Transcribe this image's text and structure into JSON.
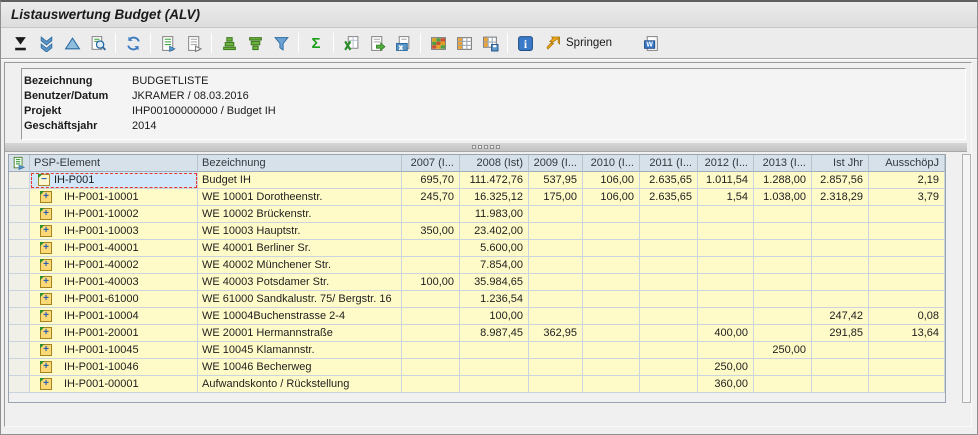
{
  "window": {
    "title": "Listauswertung Budget (ALV)"
  },
  "toolbar": {
    "springen_label": "Springen",
    "icons": [
      "expand-to-lowest-level",
      "expand-all",
      "collapse-all",
      "find",
      "refresh",
      "choose-detail",
      "detail-list",
      "sort-ascending",
      "sort-descending",
      "filter",
      "total",
      "excel-export",
      "local-file-export",
      "export",
      "choose-layout",
      "change-layout",
      "save-layout",
      "info",
      "springen-jump",
      "word-document"
    ]
  },
  "header_info": {
    "rows": [
      {
        "label": "Bezeichnung",
        "value": "BUDGETLISTE"
      },
      {
        "label": "Benutzer/Datum",
        "value": "JKRAMER / 08.03.2016"
      },
      {
        "label": "Projekt",
        "value": "IHP00100000000 / Budget IH"
      },
      {
        "label": "Geschäftsjahr",
        "value": "2014"
      }
    ]
  },
  "table": {
    "columns": [
      "PSP-Element",
      "Bezeichnung",
      "2007 (I...",
      "2008 (Ist)",
      "2009 (I...",
      "2010 (I...",
      "2011 (I...",
      "2012 (I...",
      "2013 (I...",
      "Ist Jhr",
      "AusschöpJ"
    ],
    "rows": [
      {
        "node": "expanded",
        "psp": "IH-P001",
        "bezeichnung": "Budget IH",
        "selected": true,
        "values": [
          "695,70",
          "111.472,76",
          "537,95",
          "106,00",
          "2.635,65",
          "1.011,54",
          "1.288,00",
          "2.857,56",
          "2,19"
        ]
      },
      {
        "node": "collapsed",
        "psp": "IH-P001-10001",
        "bezeichnung": "WE 10001 Dorotheenstr.",
        "values": [
          "245,70",
          "16.325,12",
          "175,00",
          "106,00",
          "2.635,65",
          "1,54",
          "1.038,00",
          "2.318,29",
          "3,79"
        ]
      },
      {
        "node": "collapsed",
        "psp": "IH-P001-10002",
        "bezeichnung": "WE 10002 Brückenstr.",
        "values": [
          "",
          "11.983,00",
          "",
          "",
          "",
          "",
          "",
          "",
          ""
        ]
      },
      {
        "node": "collapsed",
        "psp": "IH-P001-10003",
        "bezeichnung": "WE 10003 Hauptstr.",
        "values": [
          "350,00",
          "23.402,00",
          "",
          "",
          "",
          "",
          "",
          "",
          ""
        ]
      },
      {
        "node": "collapsed",
        "psp": "IH-P001-40001",
        "bezeichnung": "WE 40001 Berliner Sr.",
        "values": [
          "",
          "5.600,00",
          "",
          "",
          "",
          "",
          "",
          "",
          ""
        ]
      },
      {
        "node": "collapsed",
        "psp": "IH-P001-40002",
        "bezeichnung": "WE 40002 Münchener Str.",
        "values": [
          "",
          "7.854,00",
          "",
          "",
          "",
          "",
          "",
          "",
          ""
        ]
      },
      {
        "node": "collapsed",
        "psp": "IH-P001-40003",
        "bezeichnung": "WE 40003 Potsdamer Str.",
        "values": [
          "100,00",
          "35.984,65",
          "",
          "",
          "",
          "",
          "",
          "",
          ""
        ]
      },
      {
        "node": "collapsed",
        "psp": "IH-P001-61000",
        "bezeichnung": "WE 61000 Sandkalustr. 75/ Bergstr. 16",
        "values": [
          "",
          "1.236,54",
          "",
          "",
          "",
          "",
          "",
          "",
          ""
        ]
      },
      {
        "node": "collapsed",
        "psp": "IH-P001-10004",
        "bezeichnung": "WE 10004Buchenstrasse 2-4",
        "values": [
          "",
          "100,00",
          "",
          "",
          "",
          "",
          "",
          "247,42",
          "0,08"
        ]
      },
      {
        "node": "collapsed",
        "psp": "IH-P001-20001",
        "bezeichnung": "WE 20001 Hermannstraße",
        "values": [
          "",
          "8.987,45",
          "362,95",
          "",
          "",
          "400,00",
          "",
          "291,85",
          "13,64"
        ]
      },
      {
        "node": "collapsed",
        "psp": "IH-P001-10045",
        "bezeichnung": "WE 10045 Klamannstr.",
        "values": [
          "",
          "",
          "",
          "",
          "",
          "",
          "250,00",
          "",
          ""
        ]
      },
      {
        "node": "collapsed",
        "psp": "IH-P001-10046",
        "bezeichnung": "WE 10046 Becherweg",
        "values": [
          "",
          "",
          "",
          "",
          "",
          "250,00",
          "",
          "",
          ""
        ]
      },
      {
        "node": "collapsed",
        "psp": "IH-P001-00001",
        "bezeichnung": "Aufwandskonto / Rückstellung",
        "values": [
          "",
          "",
          "",
          "",
          "",
          "360,00",
          "",
          "",
          ""
        ]
      }
    ]
  },
  "colors": {
    "cell_yellow": "#fffbc8",
    "header_blue_gray": "#d7e1ea",
    "selection_blue": "#d2e7fa",
    "selection_border_red": "#e8372b",
    "grid_line": "#cbd4de",
    "toolbar_green": "#18a018",
    "toolbar_blue": "#4a86c0"
  }
}
